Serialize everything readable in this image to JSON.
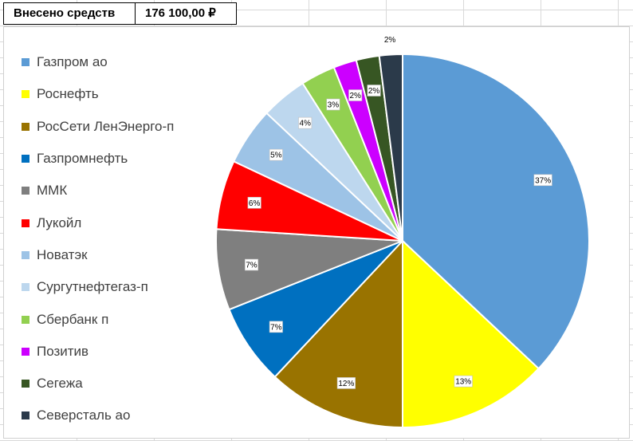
{
  "header": {
    "label": "Внесено средств",
    "value": "176 100,00 ₽"
  },
  "chart_data": {
    "type": "pie",
    "categories": [
      "Газпром ао",
      "Роснефть",
      "РосСети ЛенЭнерго-п",
      "Газпромнефть",
      "ММК",
      "Лукойл",
      "Новатэк",
      "Сургутнефтегаз-п",
      "Сбербанк п",
      "Позитив",
      "Сегежа",
      "Северсталь ао"
    ],
    "values": [
      37,
      13,
      12,
      7,
      7,
      6,
      5,
      4,
      3,
      2,
      2,
      2
    ],
    "data_labels": [
      "37%",
      "13%",
      "12%",
      "7%",
      "7%",
      "6%",
      "5%",
      "4%",
      "3%",
      "2%",
      "2%",
      "2%"
    ],
    "colors": [
      "#5B9BD5",
      "#FFFF00",
      "#997300",
      "#0070C0",
      "#7F7F7F",
      "#FF0000",
      "#9DC3E6",
      "#BDD7EE",
      "#92D050",
      "#CC00FF",
      "#375623",
      "#2B3A4A"
    ],
    "legend_position": "left",
    "title": ""
  }
}
